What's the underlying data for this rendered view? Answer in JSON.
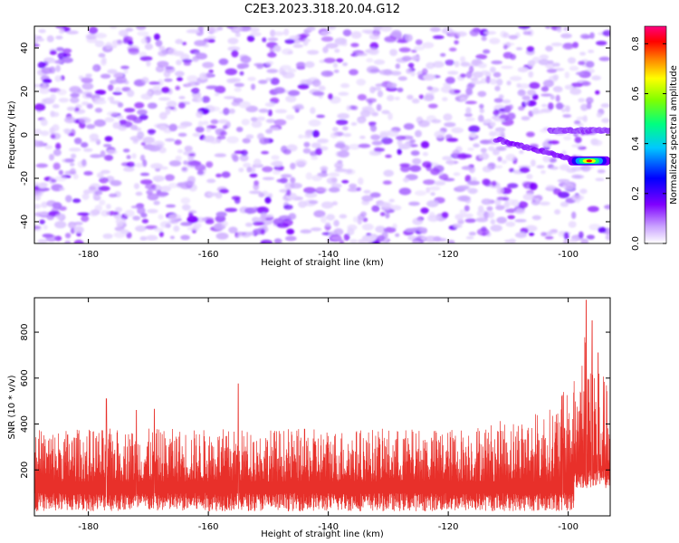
{
  "title": "C2E3.2023.318.20.04.G12",
  "chart_data": [
    {
      "type": "heatmap",
      "xlabel": "Height of straight line (km)",
      "ylabel": "Frequency (Hz)",
      "xlim": [
        -189,
        -93
      ],
      "ylim": [
        -50,
        50
      ],
      "x_ticks": [
        -180,
        -160,
        -140,
        -120,
        -100
      ],
      "y_ticks": [
        -40,
        -20,
        0,
        20,
        40
      ],
      "x_tick_labels": [
        "-180",
        "-160",
        "-140",
        "-120",
        "-100"
      ],
      "y_tick_labels": [
        "-40",
        "-20",
        "0",
        "20",
        "40"
      ],
      "colorbar": {
        "label": "Normalized spectral amplitude",
        "range": [
          0,
          0.87
        ],
        "ticks": [
          0.0,
          0.2,
          0.4,
          0.6,
          0.8
        ],
        "tick_labels": [
          "0.0",
          "0.2",
          "0.4",
          "0.6",
          "0.8"
        ]
      },
      "background": "noise speckle, amplitude mostly 0.05-0.15",
      "features": [
        {
          "kind": "weak_line",
          "x_range": [
            -112,
            -93
          ],
          "freq_start": -2,
          "freq_end": -12,
          "amplitude": 0.12
        },
        {
          "kind": "weak_line",
          "x_range": [
            -103,
            -93
          ],
          "freq": 2,
          "amplitude": 0.1
        },
        {
          "kind": "peak",
          "x_range": [
            -100,
            -93
          ],
          "freq": -12,
          "amplitude_max": 0.87
        }
      ]
    },
    {
      "type": "line",
      "xlabel": "Height of straight line (km)",
      "ylabel": "SNR (10 * v/v)",
      "xlim": [
        -189,
        -93
      ],
      "ylim": [
        0,
        950
      ],
      "x_ticks": [
        -180,
        -160,
        -140,
        -120,
        -100
      ],
      "y_ticks": [
        200,
        400,
        600,
        800
      ],
      "x_tick_labels": [
        "-180",
        "-160",
        "-140",
        "-120",
        "-100"
      ],
      "y_tick_labels": [
        "200",
        "400",
        "600",
        "800"
      ],
      "series": [
        {
          "color": "#e8302a",
          "baseline": 150,
          "noise_range": [
            20,
            400
          ],
          "spikes": [
            {
              "x": -155,
              "y": 575
            },
            {
              "x": -177,
              "y": 510
            },
            {
              "x": -172,
              "y": 460
            },
            {
              "x": -169,
              "y": 465
            },
            {
              "x": -101,
              "y": 525
            },
            {
              "x": -97,
              "y": 940
            },
            {
              "x": -96,
              "y": 850
            },
            {
              "x": -95,
              "y": 710
            }
          ],
          "envelope": [
            {
              "x": -189,
              "y": 380
            },
            {
              "x": -120,
              "y": 380
            },
            {
              "x": -110,
              "y": 420
            },
            {
              "x": -103,
              "y": 470
            },
            {
              "x": -99,
              "y": 600
            },
            {
              "x": -97,
              "y": 900
            },
            {
              "x": -95,
              "y": 700
            },
            {
              "x": -93,
              "y": 520
            }
          ]
        }
      ]
    }
  ]
}
